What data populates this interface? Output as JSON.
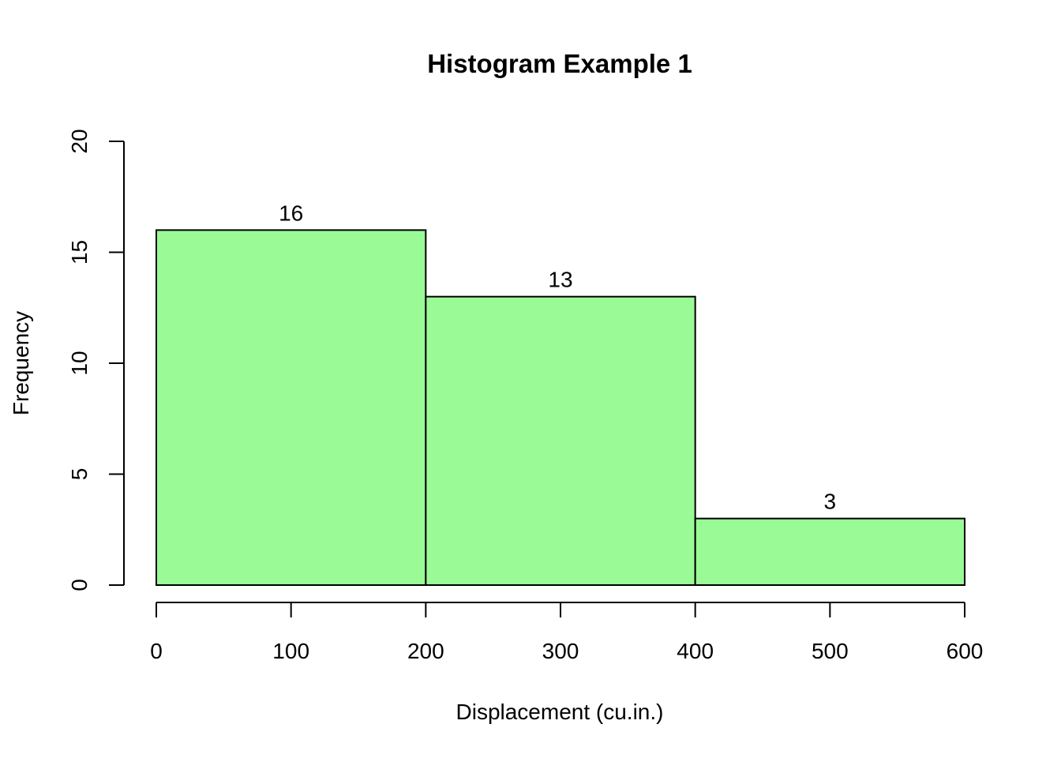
{
  "chart_data": {
    "type": "bar",
    "title": "Histogram Example 1",
    "xlabel": "Displacement (cu.in.)",
    "ylabel": "Frequency",
    "bins": [
      [
        0,
        200
      ],
      [
        200,
        400
      ],
      [
        400,
        600
      ]
    ],
    "values": [
      16,
      13,
      3
    ],
    "data_labels": [
      "16",
      "13",
      "3"
    ],
    "xlim": [
      0,
      600
    ],
    "ylim": [
      0,
      20
    ],
    "x_ticks": [
      0,
      100,
      200,
      300,
      400,
      500,
      600
    ],
    "x_tick_labels": [
      "0",
      "100",
      "200",
      "300",
      "400",
      "500",
      "600"
    ],
    "y_ticks": [
      0,
      5,
      10,
      15,
      20
    ],
    "y_tick_labels": [
      "0",
      "5",
      "10",
      "15",
      "20"
    ],
    "bar_color": "#9AFA96",
    "border_color": "#000000",
    "grid": false,
    "legend": "none"
  }
}
